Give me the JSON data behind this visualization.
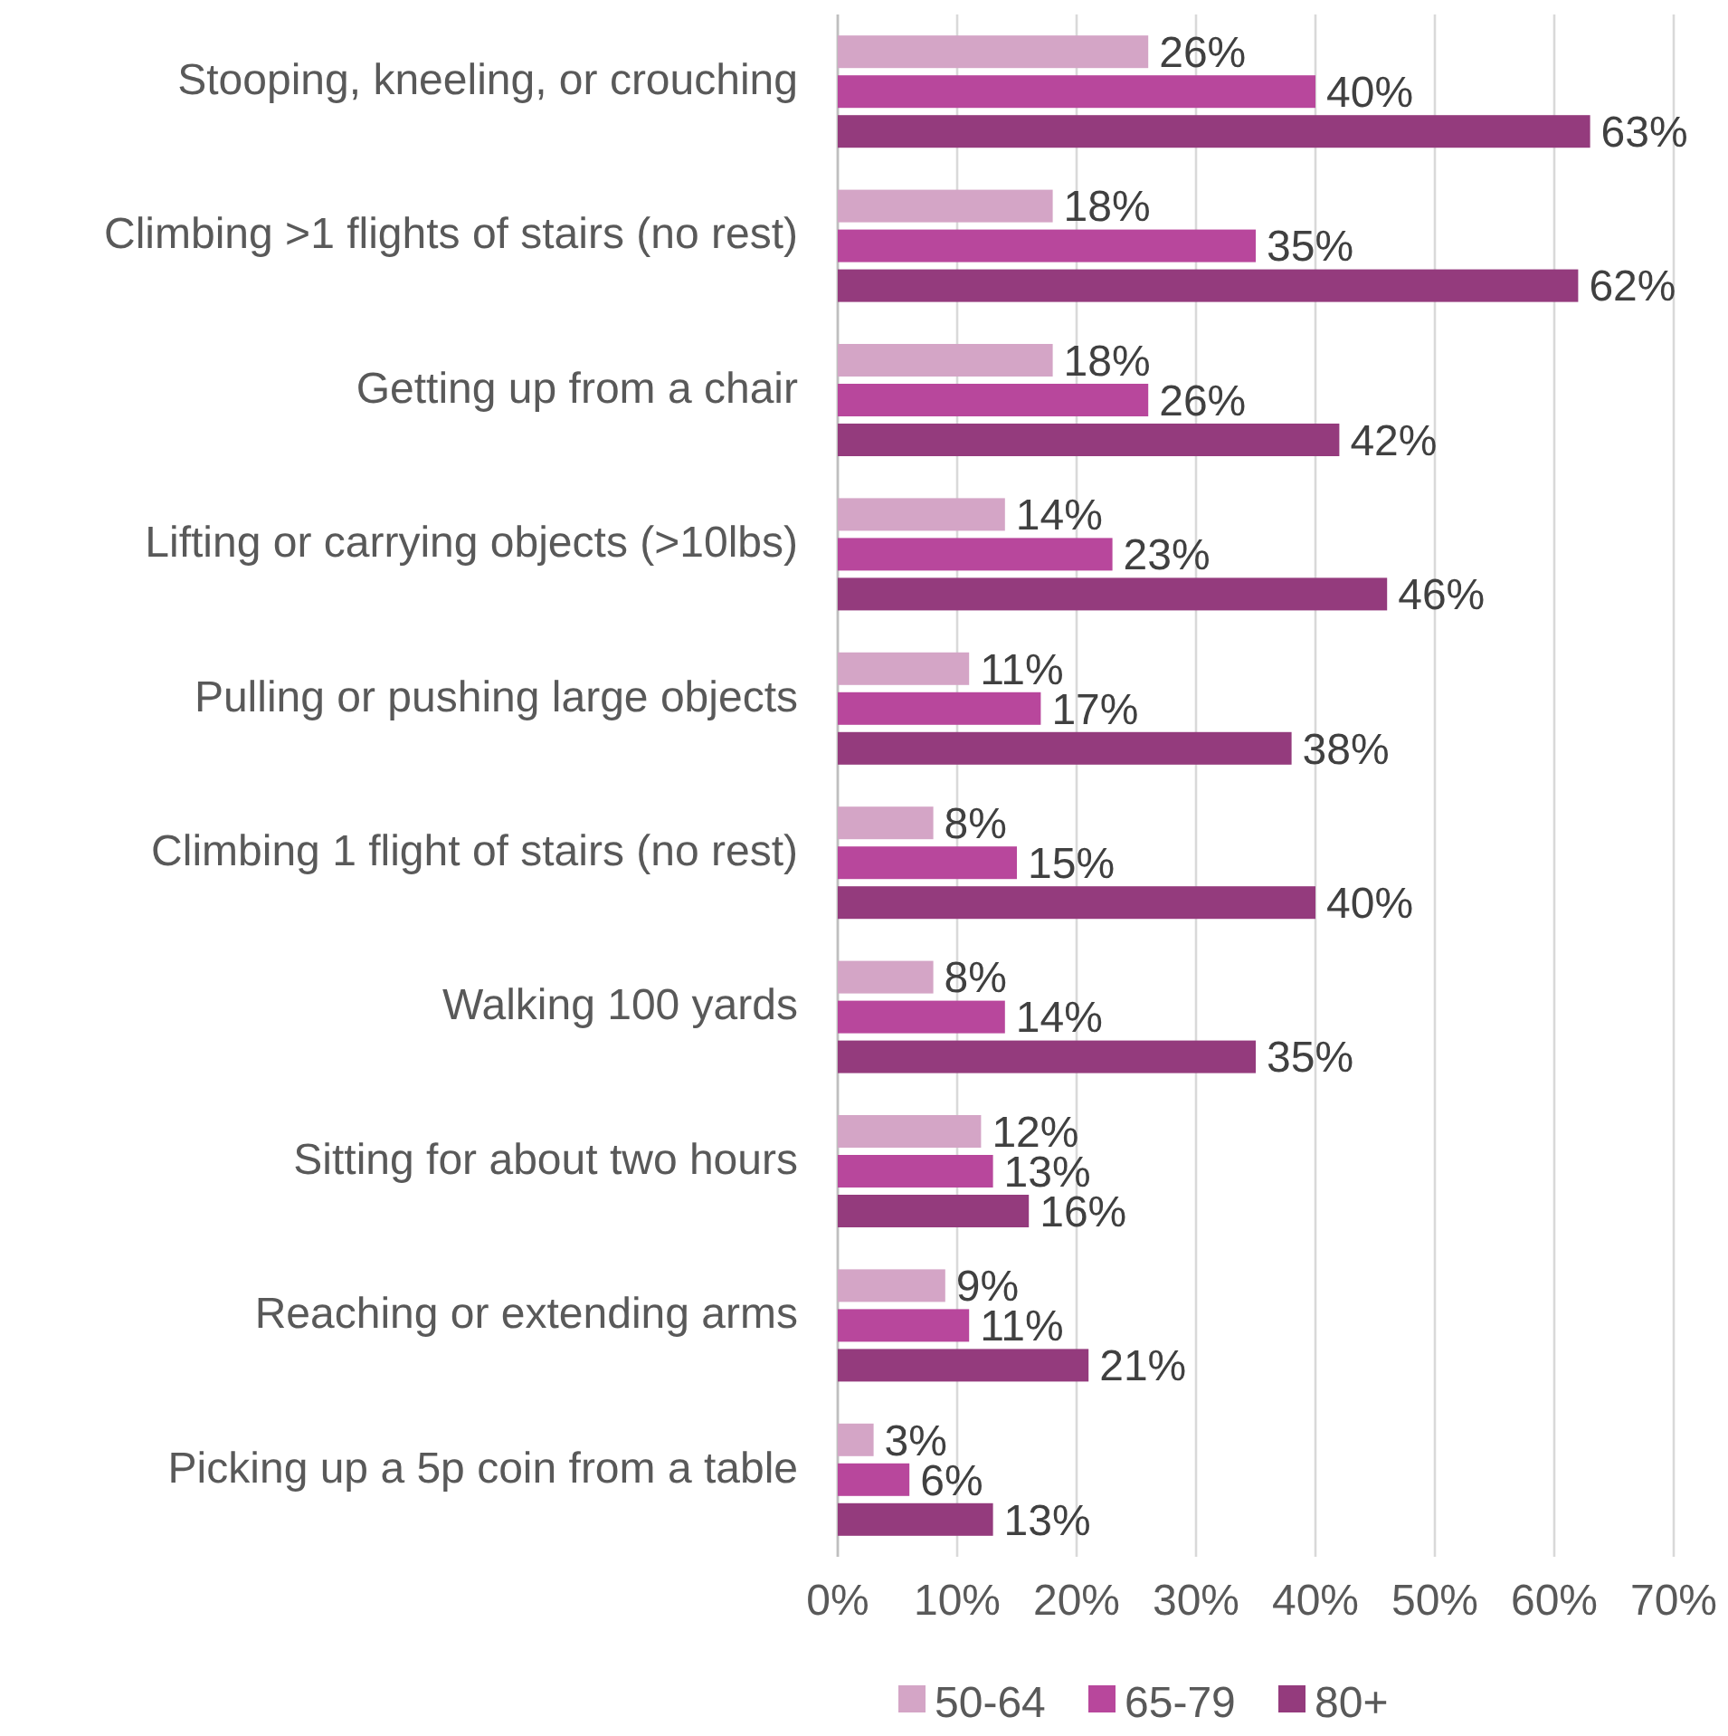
{
  "chart_data": {
    "type": "bar",
    "orientation": "horizontal",
    "categories": [
      "Stooping, kneeling, or crouching",
      "Climbing >1 flights of stairs (no rest)",
      "Getting up from a chair",
      "Lifting or carrying objects (>10lbs)",
      "Pulling or pushing large objects",
      "Climbing 1 flight of stairs (no rest)",
      "Walking 100 yards",
      "Sitting for about two hours",
      "Reaching or extending arms",
      "Picking up a 5p coin from a table"
    ],
    "series": [
      {
        "name": "50-64",
        "color": "#d4a5c6",
        "values": [
          26,
          18,
          18,
          14,
          11,
          8,
          8,
          12,
          9,
          3
        ],
        "value_labels": [
          "26%",
          "18%",
          "18%",
          "14%",
          "11%",
          "8%",
          "8%",
          "12%",
          "9%",
          "3%"
        ]
      },
      {
        "name": "65-79",
        "color": "#b8479c",
        "values": [
          40,
          35,
          26,
          23,
          17,
          15,
          14,
          13,
          11,
          6
        ],
        "value_labels": [
          "40%",
          "35%",
          "26%",
          "23%",
          "17%",
          "15%",
          "14%",
          "13%",
          "11%",
          "6%"
        ]
      },
      {
        "name": "80+",
        "color": "#943b7d",
        "values": [
          63,
          62,
          42,
          46,
          38,
          40,
          35,
          16,
          21,
          13
        ],
        "value_labels": [
          "63%",
          "62%",
          "42%",
          "46%",
          "38%",
          "40%",
          "35%",
          "16%",
          "21%",
          "13%"
        ]
      }
    ],
    "xlim": [
      0,
      70
    ],
    "xticks": [
      {
        "value": 0,
        "label": "0%"
      },
      {
        "value": 10,
        "label": "10%"
      },
      {
        "value": 20,
        "label": "20%"
      },
      {
        "value": 30,
        "label": "30%"
      },
      {
        "value": 40,
        "label": "40%"
      },
      {
        "value": 50,
        "label": "50%"
      },
      {
        "value": 60,
        "label": "60%"
      },
      {
        "value": 70,
        "label": "70%"
      }
    ],
    "grid": "x",
    "legend": "bottom"
  }
}
